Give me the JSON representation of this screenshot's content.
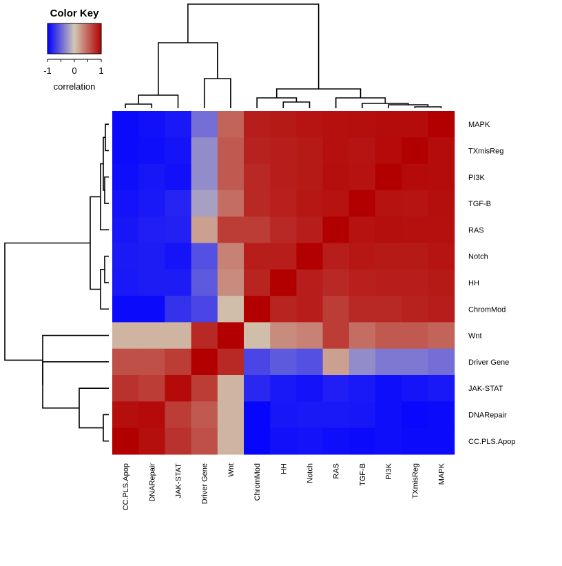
{
  "chart_data": {
    "type": "heatmap",
    "key": {
      "title": "Color Key",
      "label": "correlation",
      "ticks": [
        "-1",
        "0",
        "1"
      ],
      "tick_values": [
        -1,
        -0.5,
        0,
        0.5,
        1
      ],
      "range": [
        -1,
        1
      ],
      "colors": [
        "#0000ff",
        "#d2c8b4",
        "#b20000"
      ]
    },
    "columns": [
      "CC.PLS.Apop",
      "DNARepair",
      "JAK-STAT",
      "Driver Gene",
      "Wnt",
      "ChromMod",
      "HH",
      "Notch",
      "RAS",
      "TGF-B",
      "PI3K",
      "TXmisReg",
      "MAPK"
    ],
    "rows": [
      "MAPK",
      "TXmisReg",
      "PI3K",
      "TGF-B",
      "RAS",
      "Notch",
      "HH",
      "ChromMod",
      "Wnt",
      "Driver Gene",
      "JAK-STAT",
      "DNARepair",
      "CC.PLS.Apop"
    ],
    "values": [
      [
        -0.95,
        -0.92,
        -0.88,
        -0.45,
        0.5,
        0.85,
        0.87,
        0.9,
        0.92,
        0.93,
        0.94,
        0.94,
        1.0
      ],
      [
        -0.95,
        -0.93,
        -0.9,
        -0.3,
        0.55,
        0.83,
        0.85,
        0.87,
        0.92,
        0.9,
        0.95,
        1.0,
        0.94
      ],
      [
        -0.93,
        -0.89,
        -0.92,
        -0.3,
        0.55,
        0.8,
        0.85,
        0.87,
        0.93,
        0.91,
        1.0,
        0.95,
        0.94
      ],
      [
        -0.91,
        -0.88,
        -0.82,
        -0.2,
        0.45,
        0.8,
        0.84,
        0.89,
        0.91,
        1.0,
        0.91,
        0.9,
        0.93
      ],
      [
        -0.89,
        -0.85,
        -0.84,
        0.2,
        0.7,
        0.7,
        0.8,
        0.85,
        1.0,
        0.91,
        0.93,
        0.92,
        0.92
      ],
      [
        -0.87,
        -0.86,
        -0.9,
        -0.6,
        0.35,
        0.85,
        0.85,
        1.0,
        0.85,
        0.89,
        0.87,
        0.87,
        0.9
      ],
      [
        -0.88,
        -0.86,
        -0.86,
        -0.55,
        0.3,
        0.82,
        1.0,
        0.85,
        0.8,
        0.84,
        0.85,
        0.85,
        0.87
      ],
      [
        -0.95,
        -0.95,
        -0.75,
        -0.65,
        0.05,
        1.0,
        0.82,
        0.85,
        0.7,
        0.8,
        0.8,
        0.83,
        0.85
      ],
      [
        0.1,
        0.1,
        0.1,
        0.8,
        1.0,
        0.05,
        0.3,
        0.35,
        0.7,
        0.45,
        0.55,
        0.55,
        0.5
      ],
      [
        0.6,
        0.6,
        0.7,
        1.0,
        0.8,
        -0.65,
        -0.55,
        -0.6,
        0.2,
        -0.3,
        -0.4,
        -0.4,
        -0.45
      ],
      [
        0.75,
        0.7,
        0.95,
        0.7,
        0.1,
        -0.8,
        -0.88,
        -0.91,
        -0.85,
        -0.88,
        -0.93,
        -0.9,
        -0.88
      ],
      [
        0.93,
        0.95,
        0.7,
        0.55,
        0.1,
        -0.97,
        -0.89,
        -0.88,
        -0.88,
        -0.89,
        -0.93,
        -0.96,
        -0.95
      ],
      [
        1.0,
        0.93,
        0.75,
        0.6,
        0.1,
        -0.97,
        -0.92,
        -0.91,
        -0.93,
        -0.95,
        -0.93,
        -0.95,
        -0.95
      ]
    ]
  }
}
